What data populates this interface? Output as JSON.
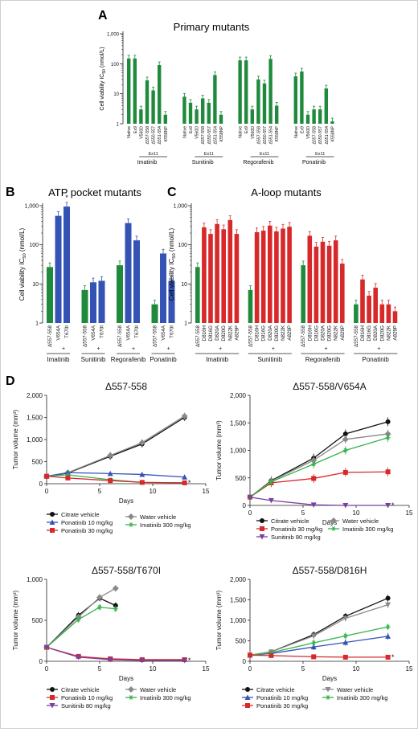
{
  "colors": {
    "green": "#1f8a3c",
    "blue": "#3453b5",
    "red": "#d7282a",
    "black": "#111111",
    "gray": "#8a8a8a",
    "purple": "#7b3fa0",
    "lightgreen": "#36b24a"
  },
  "panels": {
    "A": {
      "letter": "A",
      "title": "Primary mutants"
    },
    "B": {
      "letter": "B",
      "title": "ATP pocket mutants"
    },
    "C": {
      "letter": "C",
      "title": "A-loop mutants"
    },
    "D": {
      "letter": "D"
    }
  },
  "chart_data": [
    {
      "id": "A",
      "type": "bar",
      "title": "Primary mutants",
      "ylabel": "Cell viability IC50 (nmol/L)",
      "yscale": "log",
      "ylim": [
        1,
        1000
      ],
      "yticks": [
        "1",
        "10",
        "100",
        "1,000"
      ],
      "groups": [
        {
          "name": "Imatinib",
          "bracket": "Ex11",
          "categories": [
            "Native",
            "Ex9",
            "V560D",
            "Δ557-558",
            "Δ550-557",
            "Δ551-554",
            "K558NP"
          ],
          "values": [
            150,
            150,
            3,
            28,
            13,
            90,
            2
          ]
        },
        {
          "name": "Sunitinib",
          "bracket": "Ex11",
          "categories": [
            "Native",
            "Ex9",
            "V560D",
            "Δ557-558",
            "Δ550-557",
            "Δ551-554",
            "K558NP"
          ],
          "values": [
            8,
            5,
            3,
            7,
            5,
            42,
            2
          ]
        },
        {
          "name": "Regorafenib",
          "bracket": "Ex11",
          "categories": [
            "Native",
            "Ex9",
            "V560D",
            "Δ557-558",
            "Δ550-557",
            "Δ551-554",
            "K558NP"
          ],
          "values": [
            130,
            130,
            3,
            30,
            22,
            145,
            4
          ]
        },
        {
          "name": "Ponatinib",
          "bracket": "Ex11",
          "categories": [
            "Native",
            "Ex9",
            "V560D",
            "Δ557-558",
            "Δ550-557",
            "Δ551-554",
            "K558NP"
          ],
          "values": [
            38,
            55,
            2,
            3,
            3,
            15,
            1.2
          ]
        }
      ]
    },
    {
      "id": "B",
      "type": "bar",
      "title": "ATP pocket mutants",
      "ylabel": "Cell viability IC50 (nmol/L)",
      "yscale": "log",
      "ylim": [
        1,
        1000
      ],
      "yticks": [
        "1",
        "10",
        "100",
        "1,000"
      ],
      "groups": [
        {
          "name": "Imatinib",
          "prefix": "Δ557-558",
          "plus": "+",
          "categories": [
            "Δ557-558",
            "V654A",
            "T670I"
          ],
          "values": [
            27,
            550,
            950
          ]
        },
        {
          "name": "Sunitinib",
          "prefix": "Δ557-558",
          "plus": "+",
          "categories": [
            "Δ557-558",
            "V654A",
            "T670I"
          ],
          "values": [
            7,
            11,
            12
          ]
        },
        {
          "name": "Regorafenib",
          "prefix": "Δ557-558",
          "plus": "+",
          "categories": [
            "Δ557-558",
            "V654A",
            "T670I"
          ],
          "values": [
            30,
            360,
            130
          ]
        },
        {
          "name": "Ponatinib",
          "prefix": "Δ557-558",
          "plus": "+",
          "categories": [
            "Δ557-558",
            "V654A",
            "T670I"
          ],
          "values": [
            3,
            60,
            12
          ]
        }
      ],
      "annotation": "*"
    },
    {
      "id": "C",
      "type": "bar",
      "title": "A-loop mutants",
      "ylabel": "Cell viability IC50 (nmol/L)",
      "yscale": "log",
      "ylim": [
        1,
        1000
      ],
      "yticks": [
        "1",
        "10",
        "100",
        "1,000"
      ],
      "groups": [
        {
          "name": "Imatinib",
          "prefix": "Δ557-558",
          "plus": "+",
          "categories": [
            "Δ557-558",
            "D816H",
            "D816G",
            "D820A",
            "D820G",
            "N822K",
            "A829P"
          ],
          "values": [
            27,
            280,
            190,
            340,
            250,
            430,
            190
          ]
        },
        {
          "name": "Sunitinib",
          "prefix": "Δ557-558",
          "plus": "+",
          "categories": [
            "Δ557-558",
            "D816H",
            "D816G",
            "D820A",
            "D820G",
            "N822K",
            "A829P"
          ],
          "values": [
            7,
            210,
            230,
            310,
            220,
            260,
            290
          ]
        },
        {
          "name": "Regorafenib",
          "prefix": "Δ557-558",
          "plus": "+",
          "categories": [
            "Δ557-558",
            "D816H",
            "D816G",
            "D820A",
            "D820G",
            "N822K",
            "A829P"
          ],
          "values": [
            30,
            170,
            90,
            120,
            95,
            130,
            33
          ]
        },
        {
          "name": "Ponatinib",
          "prefix": "Δ557-558",
          "plus": "+",
          "categories": [
            "Δ557-558",
            "D816H",
            "D816G",
            "D820A",
            "D820G",
            "N822K",
            "A829P"
          ],
          "values": [
            3,
            13,
            5,
            8,
            3,
            3,
            2
          ]
        }
      ]
    },
    {
      "id": "D1",
      "type": "line",
      "title": "Δ557-558",
      "xlabel": "Days",
      "ylabel": "Tumor volume (mm³)",
      "xlim": [
        0,
        15
      ],
      "ylim": [
        0,
        2000
      ],
      "xticks": [
        "0",
        "5",
        "10",
        "15"
      ],
      "yticks": [
        "0",
        "500",
        "1,000",
        "1,500",
        "2,000"
      ],
      "series": [
        {
          "name": "Citrate vehicle",
          "color": "black",
          "marker": "circle",
          "x": [
            0,
            2,
            6,
            9,
            13
          ],
          "y": [
            160,
            240,
            620,
            900,
            1500
          ]
        },
        {
          "name": "Water vehicle",
          "color": "gray",
          "marker": "diamond",
          "x": [
            0,
            2,
            6,
            9,
            13
          ],
          "y": [
            160,
            250,
            640,
            930,
            1530
          ]
        },
        {
          "name": "Ponatinib 10 mg/kg",
          "color": "blue",
          "marker": "triangle",
          "x": [
            0,
            2,
            6,
            9,
            13
          ],
          "y": [
            170,
            250,
            230,
            210,
            150
          ]
        },
        {
          "name": "Imatinib 300 mg/kg",
          "color": "lightgreen",
          "marker": "star",
          "x": [
            0,
            2,
            6,
            9,
            13
          ],
          "y": [
            170,
            200,
            90,
            30,
            20
          ]
        },
        {
          "name": "Ponatinib 30 mg/kg",
          "color": "red",
          "marker": "square",
          "x": [
            0,
            2,
            6,
            9,
            13
          ],
          "y": [
            170,
            130,
            70,
            30,
            20
          ]
        }
      ],
      "annotation": "*"
    },
    {
      "id": "D2",
      "type": "line",
      "title": "Δ557-558/V654A",
      "xlabel": "Days",
      "ylabel": "Tumor volume (mm³)",
      "xlim": [
        0,
        15
      ],
      "ylim": [
        0,
        2000
      ],
      "xticks": [
        "0",
        "5",
        "10",
        "15"
      ],
      "yticks": [
        "0",
        "500",
        "1,000",
        "1,500",
        "2,000"
      ],
      "series": [
        {
          "name": "Citrate vehicle",
          "color": "black",
          "marker": "circle",
          "x": [
            0,
            2,
            6,
            9,
            13
          ],
          "y": [
            150,
            450,
            860,
            1300,
            1520
          ]
        },
        {
          "name": "Water vehicle",
          "color": "gray",
          "marker": "diamond",
          "x": [
            0,
            2,
            6,
            9,
            13
          ],
          "y": [
            150,
            440,
            820,
            1200,
            1300
          ]
        },
        {
          "name": "Ponatinib 30 mg/kg",
          "color": "red",
          "marker": "square",
          "x": [
            0,
            2,
            6,
            9,
            13
          ],
          "y": [
            150,
            410,
            490,
            600,
            610
          ]
        },
        {
          "name": "Imatinib 300 mg/kg",
          "color": "lightgreen",
          "marker": "star",
          "x": [
            0,
            2,
            6,
            9,
            13
          ],
          "y": [
            150,
            430,
            750,
            1000,
            1230
          ]
        },
        {
          "name": "Sunitinib 80 mg/kg",
          "color": "purple",
          "marker": "triangle-down",
          "x": [
            0,
            2,
            6,
            9,
            13
          ],
          "y": [
            150,
            90,
            10,
            0,
            0
          ]
        }
      ],
      "annotation": "*"
    },
    {
      "id": "D3",
      "type": "line",
      "title": "Δ557-558/T670I",
      "xlabel": "Days",
      "ylabel": "Tumor volume (mm³)",
      "xlim": [
        0,
        15
      ],
      "ylim": [
        0,
        1000
      ],
      "xticks": [
        "0",
        "5",
        "10",
        "15"
      ],
      "yticks": [
        "0",
        "500",
        "1,000"
      ],
      "series": [
        {
          "name": "Citrate vehicle",
          "color": "black",
          "marker": "circle",
          "x": [
            0,
            3,
            5,
            6.5
          ],
          "y": [
            170,
            560,
            770,
            680
          ]
        },
        {
          "name": "Water vehicle",
          "color": "gray",
          "marker": "diamond",
          "x": [
            0,
            3,
            5,
            6.5
          ],
          "y": [
            170,
            540,
            780,
            890
          ]
        },
        {
          "name": "Ponatinib 10 mg/kg",
          "color": "red",
          "marker": "square",
          "x": [
            0,
            3,
            6,
            9,
            13
          ],
          "y": [
            170,
            60,
            30,
            20,
            20
          ]
        },
        {
          "name": "Imatinib 300 mg/kg",
          "color": "lightgreen",
          "marker": "star",
          "x": [
            0,
            3,
            5,
            6.5
          ],
          "y": [
            170,
            510,
            660,
            640
          ]
        },
        {
          "name": "Sunitinib 80 mg/kg",
          "color": "purple",
          "marker": "triangle-down",
          "x": [
            0,
            3,
            6,
            9,
            13
          ],
          "y": [
            170,
            50,
            20,
            10,
            10
          ]
        }
      ],
      "annotation": "*"
    },
    {
      "id": "D4",
      "type": "line",
      "title": "Δ557-558/D816H",
      "xlabel": "Days",
      "ylabel": "Tumor volume (mm³)",
      "xlim": [
        0,
        15
      ],
      "ylim": [
        0,
        2000
      ],
      "xticks": [
        "0",
        "5",
        "10",
        "15"
      ],
      "yticks": [
        "0",
        "500",
        "1,000",
        "1,500",
        "2,000"
      ],
      "series": [
        {
          "name": "Citrate vehicle",
          "color": "black",
          "marker": "circle",
          "x": [
            0,
            2,
            6,
            9,
            13
          ],
          "y": [
            150,
            230,
            650,
            1100,
            1540
          ]
        },
        {
          "name": "Water vehicle",
          "color": "gray",
          "marker": "triangle-down",
          "x": [
            0,
            2,
            6,
            9,
            13
          ],
          "y": [
            150,
            230,
            620,
            1050,
            1380
          ]
        },
        {
          "name": "Ponatinib 10 mg/kg",
          "color": "blue",
          "marker": "triangle",
          "x": [
            0,
            2,
            6,
            9,
            13
          ],
          "y": [
            150,
            190,
            350,
            460,
            610
          ]
        },
        {
          "name": "Imatinib 300 mg/kg",
          "color": "lightgreen",
          "marker": "star",
          "x": [
            0,
            2,
            6,
            9,
            13
          ],
          "y": [
            150,
            210,
            450,
            620,
            840
          ]
        },
        {
          "name": "Ponatinib 30 mg/kg",
          "color": "red",
          "marker": "square",
          "x": [
            0,
            2,
            6,
            9,
            13
          ],
          "y": [
            150,
            140,
            110,
            100,
            100
          ]
        }
      ],
      "annotation": "*"
    }
  ]
}
